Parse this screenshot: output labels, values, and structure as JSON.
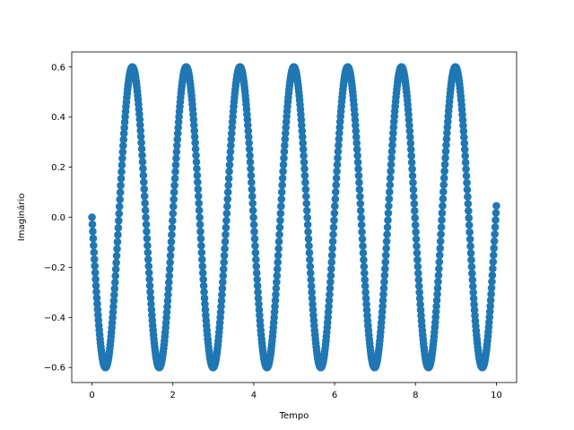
{
  "chart_data": {
    "type": "scatter",
    "title": "",
    "xlabel": "Tempo",
    "ylabel": "Imaginário",
    "xlim": [
      -0.5,
      10.5
    ],
    "ylim": [
      -0.66,
      0.66
    ],
    "xticks": [
      0,
      2,
      4,
      6,
      8,
      10
    ],
    "xtick_labels": [
      "0",
      "2",
      "4",
      "6",
      "8",
      "10"
    ],
    "yticks": [
      -0.6,
      -0.4,
      -0.2,
      0.0,
      0.2,
      0.4,
      0.6
    ],
    "ytick_labels": [
      "−0.6",
      "−0.4",
      "−0.2",
      "0.0",
      "0.2",
      "0.4",
      "0.6"
    ],
    "grid": false,
    "legend": "none",
    "series": [
      {
        "color": "#1f77b4",
        "marker": "circle",
        "function": "y = -0.6 * sin(4.72 * x)",
        "x_start": 0,
        "x_end": 10,
        "point_count": 1000
      }
    ]
  }
}
